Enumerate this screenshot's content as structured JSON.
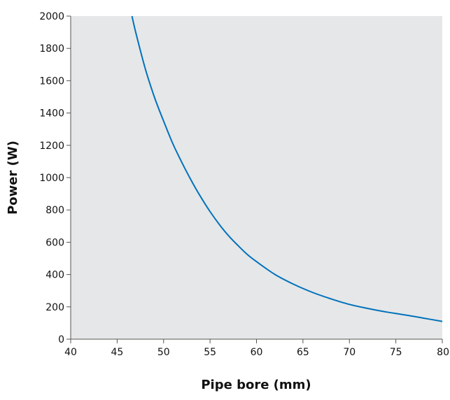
{
  "chart_data": {
    "type": "line",
    "title": "",
    "xlabel": "Pipe bore (mm)",
    "ylabel": "Power (W)",
    "xlim": [
      40,
      80
    ],
    "ylim": [
      0,
      2000
    ],
    "x_ticks": [
      "40",
      "45",
      "50",
      "55",
      "60",
      "65",
      "70",
      "75",
      "80"
    ],
    "y_ticks": [
      "0",
      "200",
      "400",
      "600",
      "800",
      "1000",
      "1200",
      "1400",
      "1600",
      "1800",
      "2000"
    ],
    "grid": false,
    "plot_background": "#e6e7e8",
    "line_color": "#0072bc",
    "series": [
      {
        "x": [
          46.6,
          47,
          48,
          49,
          50,
          51,
          52,
          53,
          54,
          55,
          56,
          57,
          58,
          59,
          60,
          62,
          64,
          66,
          68,
          70,
          72,
          74,
          76,
          78,
          80
        ],
        "values": [
          2000,
          1900,
          1680,
          1500,
          1350,
          1210,
          1090,
          980,
          880,
          790,
          710,
          640,
          580,
          525,
          480,
          400,
          340,
          290,
          250,
          215,
          190,
          168,
          150,
          130,
          110
        ]
      }
    ]
  }
}
